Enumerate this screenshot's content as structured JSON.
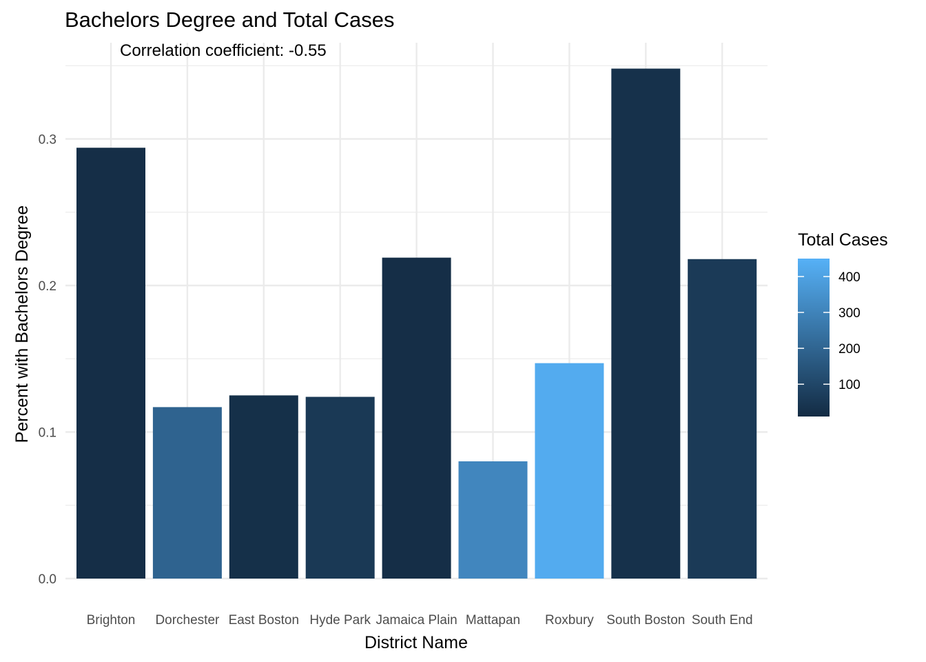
{
  "chart_data": {
    "type": "bar",
    "title": "Bachelors Degree and Total Cases",
    "annotation": "Correlation coefficient:  -0.55",
    "xlabel": "District Name",
    "ylabel": "Percent with Bachelors Degree",
    "categories": [
      "Brighton",
      "Dorchester",
      "East Boston",
      "Hyde Park",
      "Jamaica Plain",
      "Mattapan",
      "Roxbury",
      "South Boston",
      "South End"
    ],
    "values": [
      0.294,
      0.117,
      0.125,
      0.124,
      0.219,
      0.08,
      0.147,
      0.348,
      0.218
    ],
    "fill_values": [
      20,
      195,
      25,
      55,
      20,
      310,
      430,
      30,
      60
    ],
    "ylim": [
      0,
      0.35
    ],
    "yticks": [
      "0.0",
      "0.1",
      "0.2",
      "0.3"
    ],
    "ytick_values": [
      0,
      0.1,
      0.2,
      0.3
    ],
    "grid": true,
    "legend": {
      "title": "Total Cases",
      "position": "right",
      "ticks": [
        "100",
        "200",
        "300",
        "400"
      ],
      "tick_values": [
        100,
        200,
        300,
        400
      ],
      "range": [
        10,
        450
      ],
      "color_low": "#132B43",
      "color_high": "#56B1F7"
    }
  }
}
